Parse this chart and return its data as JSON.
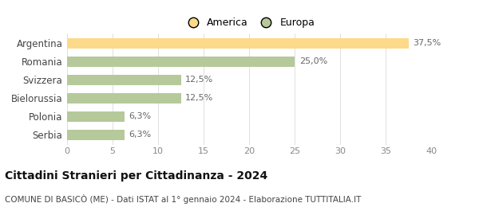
{
  "categories": [
    "Serbia",
    "Polonia",
    "Bielorussia",
    "Svizzera",
    "Romania",
    "Argentina"
  ],
  "values": [
    6.3,
    6.3,
    12.5,
    12.5,
    25.0,
    37.5
  ],
  "labels": [
    "6,3%",
    "6,3%",
    "12,5%",
    "12,5%",
    "25,0%",
    "37,5%"
  ],
  "colors": [
    "#b5c99a",
    "#b5c99a",
    "#b5c99a",
    "#b5c99a",
    "#b5c99a",
    "#fdd98a"
  ],
  "legend_items": [
    {
      "label": "America",
      "color": "#fdd98a"
    },
    {
      "label": "Europa",
      "color": "#b5c99a"
    }
  ],
  "xlim": [
    0,
    40
  ],
  "xticks": [
    0,
    5,
    10,
    15,
    20,
    25,
    30,
    35,
    40
  ],
  "title": "Cittadini Stranieri per Cittadinanza - 2024",
  "subtitle": "COMUNE DI BASICÒ (ME) - Dati ISTAT al 1° gennaio 2024 - Elaborazione TUTTITALIA.IT",
  "title_fontsize": 10,
  "subtitle_fontsize": 7.5,
  "background_color": "#ffffff",
  "bar_height": 0.55,
  "label_fontsize": 8
}
